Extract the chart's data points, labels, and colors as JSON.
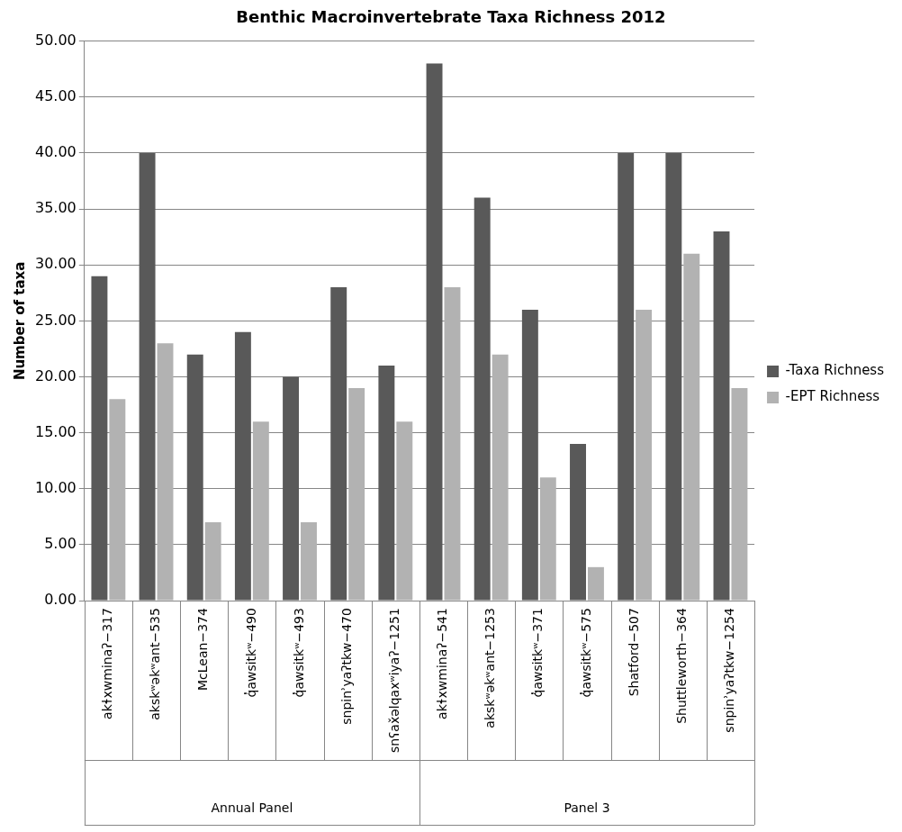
{
  "chart_data": {
    "type": "bar",
    "title": "Benthic Macroinvertebrate Taxa Richness 2012",
    "ylabel": "Number of taxa",
    "categories": [
      "akɬxwminaʔ−317",
      "akskʷəkʷant−535",
      "McLean−374",
      "q̓awsitkʷ−490",
      "q̓awsitkʷ−493",
      "snpinʾyaʔtkw−470",
      "snʕax̌əlqaxʷiyaʔ−1251",
      "akɬxwminaʔ−541",
      "akskʷəkʷant−1253",
      "q̓awsitkʷ−371",
      "q̓awsitkʷ−575",
      "Shatford−507",
      "Shuttleworth−364",
      "snpinʾyaʔtkw−1254"
    ],
    "series": [
      {
        "name": "-Taxa Richness",
        "color": "#595959",
        "values": [
          29,
          40,
          22,
          24,
          20,
          28,
          21,
          48,
          36,
          26,
          14,
          40,
          40,
          33
        ]
      },
      {
        "name": "-EPT Richness",
        "color": "#b2b2b2",
        "values": [
          18,
          23,
          7,
          16,
          7,
          19,
          16,
          28,
          22,
          11,
          3,
          26,
          31,
          19
        ]
      }
    ],
    "ylim": [
      0,
      50
    ],
    "yticks": [
      {
        "value": 0,
        "label": "0.00"
      },
      {
        "value": 5,
        "label": "5.00"
      },
      {
        "value": 10,
        "label": "10.00"
      },
      {
        "value": 15,
        "label": "15.00"
      },
      {
        "value": 20,
        "label": "20.00"
      },
      {
        "value": 25,
        "label": "25.00"
      },
      {
        "value": 30,
        "label": "30.00"
      },
      {
        "value": 35,
        "label": "35.00"
      },
      {
        "value": 40,
        "label": "40.00"
      },
      {
        "value": 45,
        "label": "45.00"
      },
      {
        "value": 50,
        "label": "50.00"
      }
    ],
    "grid": "y",
    "legend": "right",
    "annotations": [
      "Annual Panel",
      "Panel 3"
    ]
  }
}
